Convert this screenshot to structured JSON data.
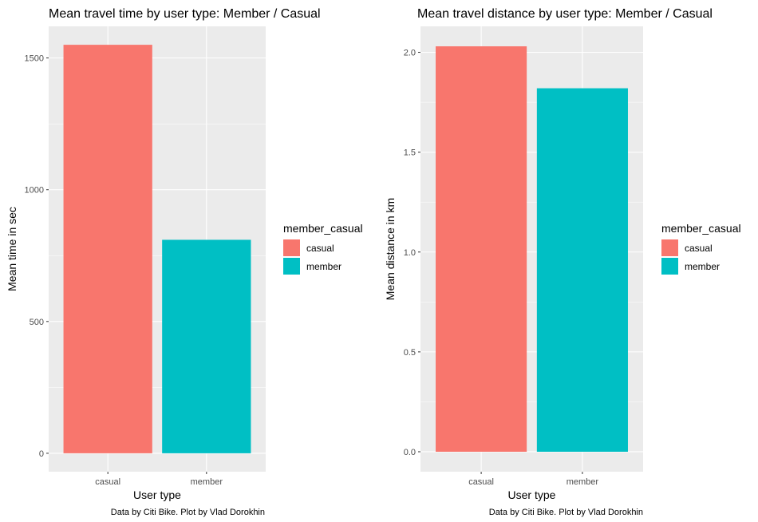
{
  "chart_data": [
    {
      "type": "bar",
      "title": "Mean travel time by user type: Member / Casual",
      "xlabel": "User type",
      "ylabel": "Mean time in sec",
      "categories": [
        "casual",
        "member"
      ],
      "values": [
        1550,
        810
      ],
      "ylim": [
        -70,
        1620
      ],
      "yticks": [
        0,
        500,
        1000,
        1500
      ],
      "yminor": [
        250,
        750,
        1250
      ],
      "yticklabels": [
        "0",
        "500",
        "1000",
        "1500"
      ],
      "colors": [
        "#F8766D",
        "#00BFC4"
      ],
      "legend": {
        "title": "member_casual",
        "entries": [
          "casual",
          "member"
        ],
        "position": "right"
      },
      "caption": "Data by Citi Bike. Plot by Vlad Dorokhin",
      "grid": true
    },
    {
      "type": "bar",
      "title": "Mean travel distance by user type: Member / Casual",
      "xlabel": "User type",
      "ylabel": "Mean distance in km",
      "categories": [
        "casual",
        "member"
      ],
      "values": [
        2.03,
        1.82
      ],
      "ylim": [
        -0.1,
        2.13
      ],
      "yticks": [
        0,
        0.5,
        1,
        1.5,
        2
      ],
      "yminor": [
        0.25,
        0.75,
        1.25,
        1.75
      ],
      "yticklabels": [
        "0.0",
        "0.5",
        "1.0",
        "1.5",
        "2.0"
      ],
      "colors": [
        "#F8766D",
        "#00BFC4"
      ],
      "legend": {
        "title": "member_casual",
        "entries": [
          "casual",
          "member"
        ],
        "position": "right"
      },
      "caption": "Data by Citi Bike. Plot by Vlad Dorokhin",
      "grid": true
    }
  ]
}
